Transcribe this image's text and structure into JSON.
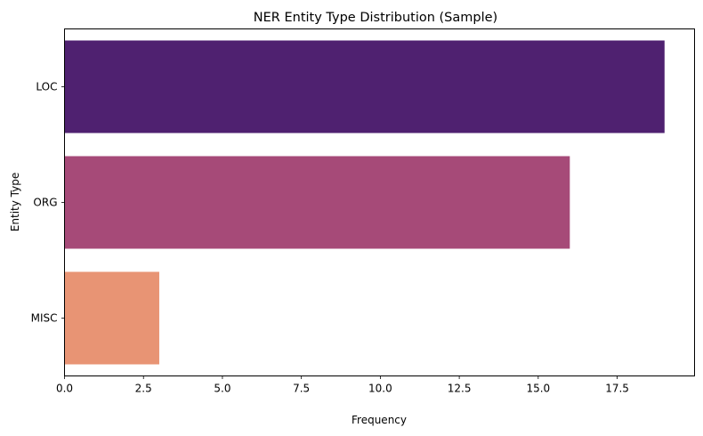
{
  "chart_data": {
    "type": "bar",
    "orientation": "horizontal",
    "title": "NER Entity Type Distribution (Sample)",
    "xlabel": "Frequency",
    "ylabel": "Entity Type",
    "categories": [
      "LOC",
      "ORG",
      "MISC"
    ],
    "values": [
      19,
      16,
      3
    ],
    "colors": [
      "#4f2170",
      "#a64a78",
      "#e89474"
    ],
    "xlim": [
      0,
      19.95
    ],
    "xticks": [
      0.0,
      2.5,
      5.0,
      7.5,
      10.0,
      12.5,
      15.0,
      17.5
    ],
    "xtick_labels": [
      "0.0",
      "2.5",
      "5.0",
      "7.5",
      "10.0",
      "12.5",
      "15.0",
      "17.5"
    ],
    "grid": false,
    "legend": "none"
  }
}
